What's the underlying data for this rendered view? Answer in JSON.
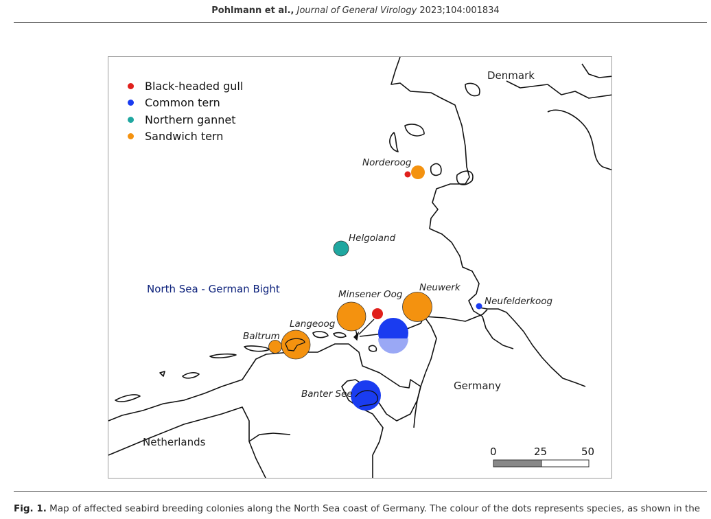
{
  "header": {
    "author": "Pohlmann",
    "etal": " et al.,",
    "journal": " Journal of General Virology",
    "citation": " 2023;104:001834"
  },
  "legend": [
    {
      "label": "Black-headed gull",
      "color": "#e0201c",
      "icon": "red-dot"
    },
    {
      "label": "Common tern",
      "color": "#1a3cf0",
      "icon": "blue-dot"
    },
    {
      "label": "Northern gannet",
      "color": "#1fa7a0",
      "icon": "teal-dot"
    },
    {
      "label": "Sandwich tern",
      "color": "#f4920f",
      "icon": "orange-dot"
    }
  ],
  "labels": {
    "denmark": "Denmark",
    "germany": "Germany",
    "netherlands": "Netherlands",
    "sea": "North Sea - German Bight",
    "norderoog": "Norderoog",
    "helgoland": "Helgoland",
    "minsener": "Minsener Oog",
    "neuwerk": "Neuwerk",
    "neufelderkoog": "Neufelderkoog",
    "langeoog": "Langeoog",
    "baltrum": "Baltrum",
    "banter": "Banter See"
  },
  "scale": {
    "ticks": [
      "0",
      "25",
      "50"
    ]
  },
  "colors": {
    "gull": "#e0201c",
    "tern": "#1a3cf0",
    "gannet": "#1fa7a0",
    "sandwich": "#f4920f",
    "sea_label": "#0a1f7a",
    "coast": "#111111"
  },
  "caption": {
    "fig": "Fig. 1.",
    "text": " Map of affected seabird breeding colonies along the North Sea coast of Germany. The colour of the dots represents species, as shown in the"
  }
}
